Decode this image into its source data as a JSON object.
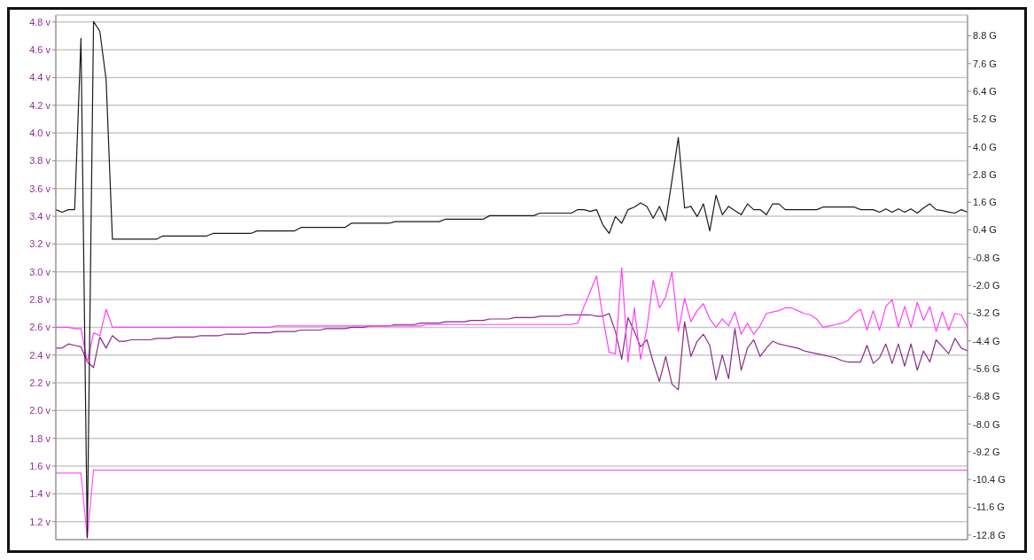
{
  "chart_data": {
    "type": "line",
    "categories": [
      null,
      null,
      null,
      null,
      null,
      null,
      null,
      null,
      null,
      null,
      null,
      null,
      null,
      null,
      null,
      null,
      null,
      null,
      null,
      null,
      null,
      null,
      null,
      null,
      null,
      null,
      null,
      null,
      null,
      null,
      null,
      null,
      null,
      null,
      null,
      null,
      null,
      null,
      null,
      null,
      null,
      null,
      null,
      null,
      null,
      null,
      null,
      null,
      null,
      null,
      null,
      null,
      null,
      null,
      null,
      null,
      null,
      null,
      null,
      null,
      null,
      null,
      null,
      null,
      null,
      null,
      null,
      null,
      null,
      null,
      null,
      null,
      null,
      null,
      null,
      null,
      null,
      null,
      null,
      null,
      null,
      null,
      null,
      null,
      null,
      null,
      null,
      null,
      null,
      null,
      null,
      null,
      null,
      null,
      null,
      null,
      null,
      null,
      null,
      null,
      null,
      null,
      null,
      null,
      null,
      null,
      null,
      null,
      null,
      null,
      null,
      null,
      null,
      null,
      null,
      null,
      null,
      null,
      null,
      null,
      null,
      null,
      null,
      null,
      null,
      null,
      null,
      null,
      null,
      null,
      null,
      null,
      null,
      null,
      null,
      null,
      null,
      null,
      null,
      null,
      null,
      null,
      null,
      null,
      null,
      null
    ],
    "ylim": [
      1.07,
      4.85
    ],
    "yticks": [
      {
        "value": 4.8,
        "label": "4.8 v"
      },
      {
        "value": 4.6,
        "label": "4.6 v"
      },
      {
        "value": 4.4,
        "label": "4.4 v"
      },
      {
        "value": 4.2,
        "label": "4.2 v"
      },
      {
        "value": 4.0,
        "label": "4.0 v"
      },
      {
        "value": 3.8,
        "label": "3.8 v"
      },
      {
        "value": 3.6,
        "label": "3.6 v"
      },
      {
        "value": 3.4,
        "label": "3.4 v"
      },
      {
        "value": 3.2,
        "label": "3.2 v"
      },
      {
        "value": 3.0,
        "label": "3.0 v"
      },
      {
        "value": 2.8,
        "label": "2.8 v"
      },
      {
        "value": 2.6,
        "label": "2.6 v"
      },
      {
        "value": 2.4,
        "label": "2.4 v"
      },
      {
        "value": 2.2,
        "label": "2.2 v"
      },
      {
        "value": 2.0,
        "label": "2.0 v"
      },
      {
        "value": 1.8,
        "label": "1.8 v"
      },
      {
        "value": 1.6,
        "label": "1.6 v"
      },
      {
        "value": 1.4,
        "label": "1.4 v"
      },
      {
        "value": 1.2,
        "label": "1.2 v"
      }
    ],
    "y2lim": [
      -13.0,
      9.7
    ],
    "y2ticks": [
      {
        "value": 8.8,
        "label": "8.8 G"
      },
      {
        "value": 7.6,
        "label": "7.6 G"
      },
      {
        "value": 6.4,
        "label": "6.4 G"
      },
      {
        "value": 5.2,
        "label": "5.2 G"
      },
      {
        "value": 4.0,
        "label": "4.0 G"
      },
      {
        "value": 2.8,
        "label": "2.8 G"
      },
      {
        "value": 1.6,
        "label": "1.6 G"
      },
      {
        "value": 0.4,
        "label": "0.4 G"
      },
      {
        "value": -0.8,
        "label": "-0.8 G"
      },
      {
        "value": -2.0,
        "label": "-2.0 G"
      },
      {
        "value": -3.2,
        "label": "-3.2 G"
      },
      {
        "value": -4.4,
        "label": "-4.4 G"
      },
      {
        "value": -5.6,
        "label": "-5.6 G"
      },
      {
        "value": -6.8,
        "label": "-6.8 G"
      },
      {
        "value": -8.0,
        "label": "-8.0 G"
      },
      {
        "value": -9.2,
        "label": "-9.2 G"
      },
      {
        "value": -10.4,
        "label": "-10.4 G"
      },
      {
        "value": -11.6,
        "label": "-11.6 G"
      },
      {
        "value": -12.8,
        "label": "-12.8 G"
      }
    ],
    "grid": true,
    "tick_labels": "y",
    "line_style": "solid",
    "series": [
      {
        "color": "#1a1a1a",
        "axis": "y2",
        "values": [
          1.28,
          1.17,
          1.28,
          1.28,
          8.69,
          -12.9,
          9.42,
          9.0,
          6.9,
          0.0,
          0.0,
          0.0,
          0.0,
          0.0,
          0.0,
          0.0,
          0.0,
          0.14,
          0.14,
          0.14,
          0.14,
          0.14,
          0.14,
          0.14,
          0.14,
          0.25,
          0.25,
          0.25,
          0.25,
          0.25,
          0.25,
          0.25,
          0.36,
          0.36,
          0.36,
          0.36,
          0.36,
          0.36,
          0.36,
          0.51,
          0.51,
          0.51,
          0.51,
          0.51,
          0.51,
          0.51,
          0.51,
          0.69,
          0.69,
          0.69,
          0.69,
          0.69,
          0.69,
          0.69,
          0.76,
          0.76,
          0.76,
          0.76,
          0.76,
          0.76,
          0.76,
          0.76,
          0.87,
          0.87,
          0.87,
          0.87,
          0.87,
          0.87,
          0.87,
          1.02,
          1.02,
          1.02,
          1.02,
          1.02,
          1.02,
          1.02,
          1.02,
          1.13,
          1.13,
          1.13,
          1.13,
          1.13,
          1.13,
          1.28,
          1.28,
          1.2,
          1.28,
          0.62,
          0.25,
          0.98,
          0.69,
          1.28,
          1.39,
          1.57,
          1.42,
          0.91,
          1.42,
          0.8,
          2.56,
          4.4,
          1.35,
          1.42,
          0.98,
          1.53,
          0.36,
          1.9,
          1.06,
          1.42,
          1.24,
          1.06,
          1.53,
          1.28,
          1.28,
          1.06,
          1.53,
          1.53,
          1.28,
          1.28,
          1.28,
          1.28,
          1.28,
          1.28,
          1.39,
          1.39,
          1.39,
          1.39,
          1.39,
          1.39,
          1.28,
          1.28,
          1.28,
          1.17,
          1.31,
          1.17,
          1.31,
          1.17,
          1.31,
          1.13,
          1.35,
          1.53,
          1.28,
          1.24,
          1.17,
          1.13,
          1.28,
          1.17
        ]
      },
      {
        "color": "#ff40ff",
        "axis": "y",
        "values": [
          2.6,
          2.6,
          2.6,
          2.59,
          2.59,
          2.35,
          2.56,
          2.54,
          2.73,
          2.6,
          2.6,
          2.6,
          2.6,
          2.6,
          2.6,
          2.6,
          2.6,
          2.6,
          2.6,
          2.6,
          2.6,
          2.6,
          2.6,
          2.6,
          2.6,
          2.6,
          2.6,
          2.6,
          2.6,
          2.6,
          2.6,
          2.6,
          2.6,
          2.6,
          2.6,
          2.61,
          2.61,
          2.61,
          2.61,
          2.61,
          2.61,
          2.61,
          2.61,
          2.61,
          2.61,
          2.61,
          2.61,
          2.61,
          2.61,
          2.61,
          2.61,
          2.61,
          2.61,
          2.61,
          2.61,
          2.61,
          2.61,
          2.61,
          2.61,
          2.62,
          2.62,
          2.62,
          2.62,
          2.62,
          2.62,
          2.62,
          2.62,
          2.62,
          2.62,
          2.62,
          2.62,
          2.62,
          2.62,
          2.62,
          2.62,
          2.62,
          2.62,
          2.62,
          2.62,
          2.62,
          2.62,
          2.62,
          2.62,
          2.63,
          2.75,
          2.86,
          2.97,
          2.67,
          2.42,
          2.41,
          3.03,
          2.35,
          2.74,
          2.37,
          2.59,
          2.94,
          2.74,
          2.82,
          3.0,
          2.57,
          2.81,
          2.64,
          2.72,
          2.77,
          2.66,
          2.6,
          2.66,
          2.61,
          2.71,
          2.55,
          2.63,
          2.55,
          2.61,
          2.7,
          2.71,
          2.72,
          2.74,
          2.74,
          2.72,
          2.7,
          2.69,
          2.66,
          2.6,
          2.61,
          2.62,
          2.63,
          2.65,
          2.7,
          2.73,
          2.58,
          2.72,
          2.58,
          2.75,
          2.8,
          2.6,
          2.75,
          2.6,
          2.78,
          2.65,
          2.75,
          2.57,
          2.71,
          2.58,
          2.7,
          2.69,
          2.6
        ]
      },
      {
        "color": "#8b2a8b",
        "axis": "y",
        "values": [
          2.45,
          2.45,
          2.48,
          2.47,
          2.46,
          2.35,
          2.31,
          2.53,
          2.45,
          2.54,
          2.5,
          2.5,
          2.51,
          2.51,
          2.51,
          2.51,
          2.52,
          2.52,
          2.52,
          2.53,
          2.53,
          2.53,
          2.53,
          2.54,
          2.54,
          2.54,
          2.54,
          2.55,
          2.55,
          2.55,
          2.55,
          2.56,
          2.56,
          2.56,
          2.56,
          2.57,
          2.57,
          2.57,
          2.57,
          2.58,
          2.58,
          2.58,
          2.58,
          2.59,
          2.59,
          2.59,
          2.59,
          2.6,
          2.6,
          2.6,
          2.61,
          2.61,
          2.61,
          2.61,
          2.62,
          2.62,
          2.62,
          2.62,
          2.63,
          2.63,
          2.63,
          2.63,
          2.64,
          2.64,
          2.64,
          2.64,
          2.65,
          2.65,
          2.65,
          2.66,
          2.66,
          2.66,
          2.66,
          2.67,
          2.67,
          2.67,
          2.67,
          2.68,
          2.68,
          2.68,
          2.68,
          2.69,
          2.69,
          2.69,
          2.69,
          2.69,
          2.68,
          2.68,
          2.7,
          2.57,
          2.37,
          2.67,
          2.57,
          2.46,
          2.51,
          2.35,
          2.21,
          2.39,
          2.19,
          2.15,
          2.64,
          2.39,
          2.5,
          2.55,
          2.47,
          2.22,
          2.4,
          2.23,
          2.59,
          2.29,
          2.45,
          2.51,
          2.39,
          2.45,
          2.5,
          2.48,
          2.47,
          2.46,
          2.45,
          2.43,
          2.42,
          2.41,
          2.4,
          2.39,
          2.38,
          2.36,
          2.35,
          2.35,
          2.35,
          2.47,
          2.34,
          2.38,
          2.48,
          2.34,
          2.48,
          2.32,
          2.48,
          2.29,
          2.43,
          2.35,
          2.51,
          2.46,
          2.41,
          2.52,
          2.45,
          2.43
        ]
      },
      {
        "color": "#ff55ff",
        "axis": "y",
        "values": [
          1.55,
          1.55,
          1.55,
          1.55,
          1.55,
          1.08,
          1.57,
          1.57,
          1.57,
          1.57,
          1.57,
          1.57,
          1.57,
          1.57,
          1.57,
          1.57,
          1.57,
          1.57,
          1.57,
          1.57,
          1.57,
          1.57,
          1.57,
          1.57,
          1.57,
          1.57,
          1.57,
          1.57,
          1.57,
          1.57,
          1.57,
          1.57,
          1.57,
          1.57,
          1.57,
          1.57,
          1.57,
          1.57,
          1.57,
          1.57,
          1.57,
          1.57,
          1.57,
          1.57,
          1.57,
          1.57,
          1.57,
          1.57,
          1.57,
          1.57,
          1.57,
          1.57,
          1.57,
          1.57,
          1.57,
          1.57,
          1.57,
          1.57,
          1.57,
          1.57,
          1.57,
          1.57,
          1.57,
          1.57,
          1.57,
          1.57,
          1.57,
          1.57,
          1.57,
          1.57,
          1.57,
          1.57,
          1.57,
          1.57,
          1.57,
          1.57,
          1.57,
          1.57,
          1.57,
          1.57,
          1.57,
          1.57,
          1.57,
          1.57,
          1.57,
          1.57,
          1.57,
          1.57,
          1.57,
          1.57,
          1.57,
          1.57,
          1.57,
          1.57,
          1.57,
          1.57,
          1.57,
          1.57,
          1.57,
          1.57,
          1.57,
          1.57,
          1.57,
          1.57,
          1.57,
          1.57,
          1.57,
          1.57,
          1.57,
          1.57,
          1.57,
          1.57,
          1.57,
          1.57,
          1.57,
          1.57,
          1.57,
          1.57,
          1.57,
          1.57,
          1.57,
          1.57,
          1.57,
          1.57,
          1.57,
          1.57,
          1.57,
          1.57,
          1.57,
          1.57,
          1.57,
          1.57,
          1.57,
          1.57,
          1.57,
          1.57,
          1.57,
          1.57,
          1.57,
          1.57,
          1.57,
          1.57,
          1.57,
          1.57,
          1.57,
          1.57
        ]
      }
    ]
  }
}
